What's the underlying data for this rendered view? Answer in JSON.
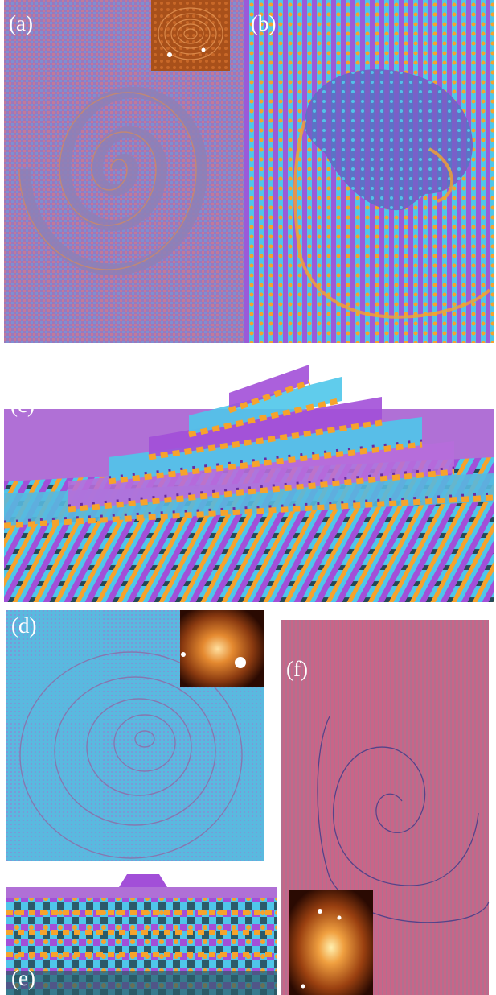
{
  "figure": {
    "panels": [
      {
        "id": "a",
        "label": "(a)",
        "content": "spiral-step-surface-top-view-with-afm-inset"
      },
      {
        "id": "b",
        "label": "(b)",
        "content": "zoomed-spiral-core-top-view"
      },
      {
        "id": "c",
        "label": "(c)",
        "content": "perspective-view-of-spiral-steps"
      },
      {
        "id": "d",
        "label": "(d)",
        "content": "spiral-step-surface-blue-top-view-with-afm-inset"
      },
      {
        "id": "e",
        "label": "(e)",
        "content": "perspective-view-of-layered-steps"
      },
      {
        "id": "f",
        "label": "(f)",
        "content": "elongated-spiral-pink-top-view-with-afm-inset"
      }
    ]
  },
  "colors": {
    "magenta": "#a24fd8",
    "cyan": "#4fc6ea",
    "orange": "#f6a32c",
    "pink_surface": "#c96588",
    "lavender_surface": "#a07cc0",
    "blue_surface": "#5ab9df",
    "afm_dark": "#4a1a05",
    "afm_bright": "#f2a050"
  }
}
